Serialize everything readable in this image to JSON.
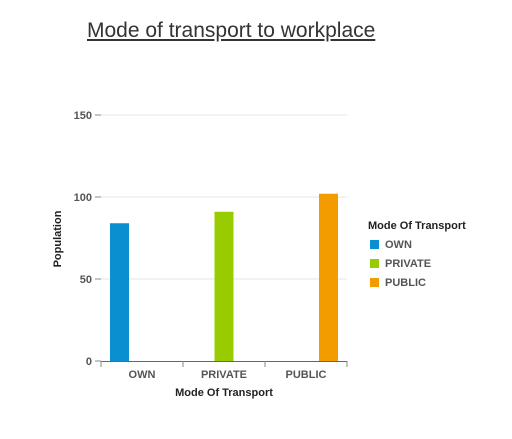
{
  "chart_data": {
    "type": "bar",
    "title": "Mode of transport to workplace",
    "xlabel": "Mode Of Transport",
    "ylabel": "Population",
    "categories": [
      "OWN",
      "PRIVATE",
      "PUBLIC"
    ],
    "ylim": [
      0,
      150
    ],
    "yticks": [
      0,
      50,
      100,
      150
    ],
    "grid": true,
    "legend": {
      "title": "Mode Of Transport",
      "placement": "right"
    },
    "series": [
      {
        "name": "OWN",
        "color": "#0a8fd1",
        "values": [
          84,
          null,
          null
        ]
      },
      {
        "name": "PRIVATE",
        "color": "#99cc00",
        "values": [
          null,
          91,
          null
        ]
      },
      {
        "name": "PUBLIC",
        "color": "#f39c00",
        "values": [
          null,
          null,
          102
        ]
      }
    ]
  }
}
